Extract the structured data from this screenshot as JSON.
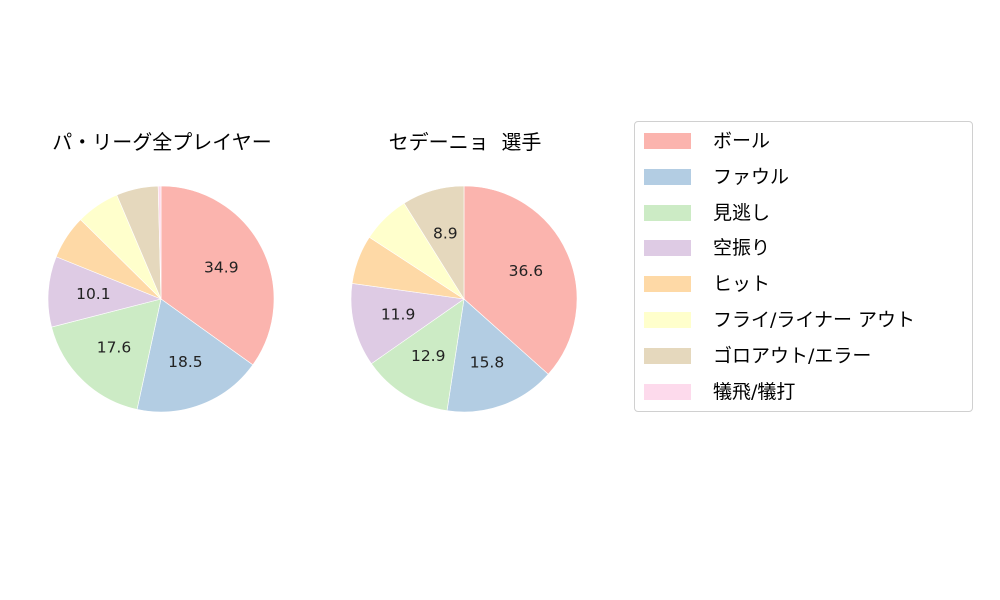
{
  "chart_data": [
    {
      "type": "pie",
      "title": "パ・リーグ全プレイヤー",
      "categories": [
        "ボール",
        "ファウル",
        "見逃し",
        "空振り",
        "ヒット",
        "フライ/ライナー アウト",
        "ゴロアウト/エラー",
        "犠飛/犠打"
      ],
      "values": [
        34.9,
        18.5,
        17.6,
        10.1,
        6.3,
        6.2,
        6.0,
        0.4
      ],
      "labels_shown": [
        "34.9",
        "18.5",
        "17.6",
        "10.1",
        "",
        "",
        "",
        ""
      ],
      "start_angle": 90,
      "direction": "clockwise"
    },
    {
      "type": "pie",
      "title": "セデーニョ  選手",
      "categories": [
        "ボール",
        "ファウル",
        "見逃し",
        "空振り",
        "ヒット",
        "フライ/ライナー アウト",
        "ゴロアウト/エラー",
        "犠飛/犠打"
      ],
      "values": [
        36.6,
        15.8,
        12.9,
        11.9,
        7.0,
        6.9,
        8.9,
        0.0
      ],
      "labels_shown": [
        "36.6",
        "15.8",
        "12.9",
        "11.9",
        "",
        "",
        "8.9",
        ""
      ],
      "start_angle": 90,
      "direction": "clockwise"
    }
  ],
  "legend": {
    "items": [
      {
        "label": "ボール",
        "color": "#fbb4ae"
      },
      {
        "label": "ファウル",
        "color": "#b3cde3"
      },
      {
        "label": "見逃し",
        "color": "#ccebc5"
      },
      {
        "label": "空振り",
        "color": "#decbe4"
      },
      {
        "label": "ヒット",
        "color": "#fed9a6"
      },
      {
        "label": "フライ/ライナー アウト",
        "color": "#ffffcc"
      },
      {
        "label": "ゴロアウト/エラー",
        "color": "#e5d8bd"
      },
      {
        "label": "犠飛/犠打",
        "color": "#fddaec"
      }
    ]
  }
}
